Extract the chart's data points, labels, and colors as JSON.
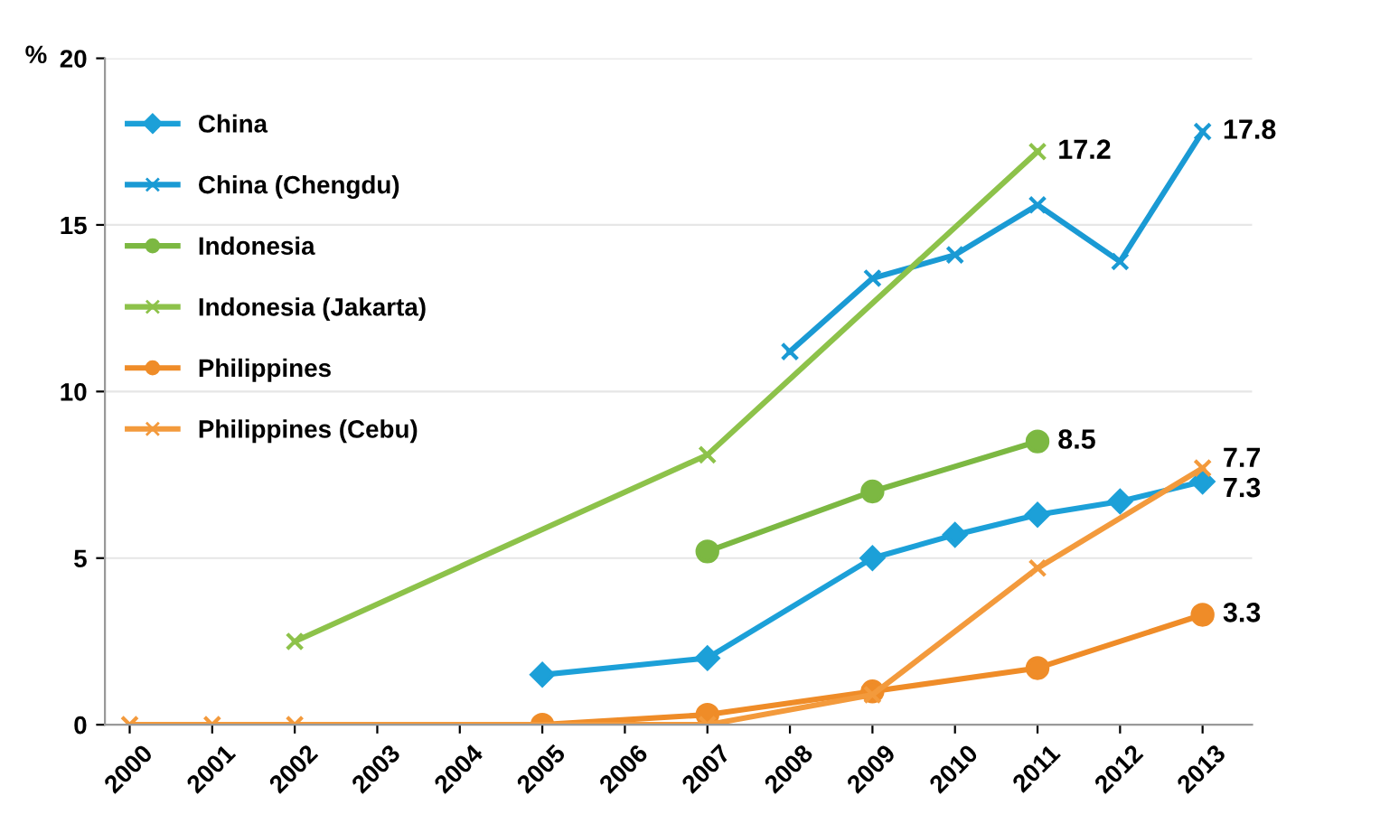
{
  "chart_data": {
    "type": "line",
    "ylabel": "%",
    "categories": [
      "2000",
      "2001",
      "2002",
      "2003",
      "2004",
      "2005",
      "2006",
      "2007",
      "2008",
      "2009",
      "2010",
      "2011",
      "2012",
      "2013"
    ],
    "ylim": [
      0,
      20
    ],
    "yticks": [
      0,
      5,
      10,
      15,
      20
    ],
    "grid": "y",
    "legend": "top left",
    "series": [
      {
        "name": "China",
        "color": "#1ca0d8",
        "marker": "diamond",
        "values": [
          null,
          null,
          null,
          null,
          null,
          1.5,
          null,
          2.0,
          null,
          5.0,
          5.7,
          6.3,
          6.7,
          7.3
        ],
        "value_labels": [
          null,
          null,
          null,
          null,
          null,
          null,
          null,
          null,
          null,
          null,
          null,
          null,
          null,
          "7.3"
        ]
      },
      {
        "name": "China (Chengdu)",
        "color": "#1a9ad4",
        "marker": "cross",
        "values": [
          null,
          null,
          null,
          null,
          null,
          null,
          null,
          null,
          11.2,
          13.4,
          14.1,
          15.6,
          13.9,
          17.8
        ],
        "value_labels": [
          null,
          null,
          null,
          null,
          null,
          null,
          null,
          null,
          null,
          null,
          null,
          null,
          null,
          "17.8"
        ]
      },
      {
        "name": "Indonesia",
        "color": "#7cb842",
        "marker": "circle",
        "values": [
          null,
          null,
          null,
          null,
          null,
          null,
          null,
          5.2,
          null,
          7.0,
          null,
          8.5,
          null,
          null
        ],
        "value_labels": [
          null,
          null,
          null,
          null,
          null,
          null,
          null,
          null,
          null,
          null,
          null,
          "8.5",
          null,
          null
        ]
      },
      {
        "name": "Indonesia (Jakarta)",
        "color": "#8dc24a",
        "marker": "cross",
        "values": [
          null,
          null,
          2.5,
          null,
          null,
          null,
          null,
          8.1,
          null,
          null,
          null,
          17.2,
          null,
          null
        ],
        "value_labels": [
          null,
          null,
          null,
          null,
          null,
          null,
          null,
          null,
          null,
          null,
          null,
          "17.2",
          null,
          null
        ]
      },
      {
        "name": "Philippines",
        "color": "#ef8c28",
        "marker": "circle",
        "values": [
          null,
          null,
          null,
          null,
          null,
          0,
          null,
          0.3,
          null,
          1.0,
          null,
          1.7,
          null,
          3.3
        ],
        "value_labels": [
          null,
          null,
          null,
          null,
          null,
          null,
          null,
          null,
          null,
          null,
          null,
          null,
          null,
          "3.3"
        ]
      },
      {
        "name": "Philippines (Cebu)",
        "color": "#f39a3c",
        "marker": "cross",
        "values": [
          0,
          0,
          0,
          null,
          null,
          null,
          null,
          0,
          null,
          0.9,
          null,
          4.7,
          null,
          7.7
        ],
        "value_labels": [
          null,
          null,
          null,
          null,
          null,
          null,
          null,
          null,
          null,
          null,
          null,
          null,
          null,
          "7.7"
        ]
      }
    ]
  }
}
